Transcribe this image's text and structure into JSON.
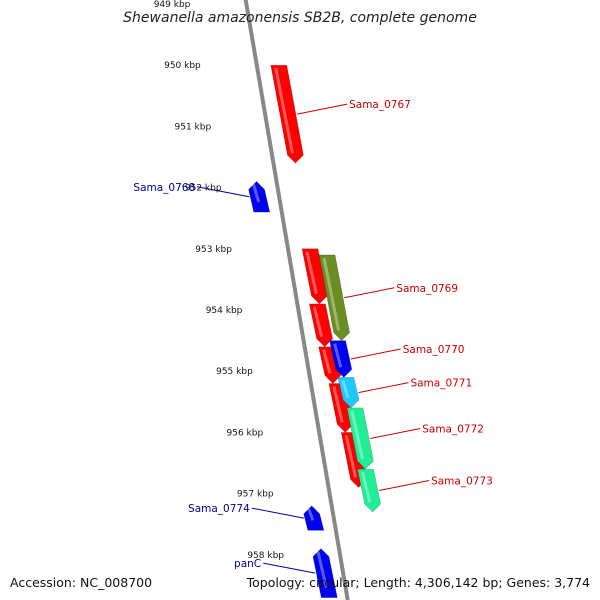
{
  "title": "Shewanella amazonensis SB2B, complete genome",
  "accession": "Accession: NC_008700",
  "topology": "Topology: circular; Length: 4,306,142 bp; Genes: 3,774",
  "colors": {
    "backbone": "#888888",
    "tick": "#1a7a1a",
    "forward_label": "#cc0000",
    "reverse_label": "#000099"
  },
  "ticks": [
    "949 kbp",
    "950 kbp",
    "951 kbp",
    "952 kbp",
    "953 kbp",
    "954 kbp",
    "955 kbp",
    "956 kbp",
    "957 kbp",
    "958 kbp"
  ],
  "genes": [
    {
      "name": "Sama_0767",
      "strand": "+",
      "start_kbp": 950.0,
      "end_kbp": 951.6,
      "color": "#ff0000"
    },
    {
      "name": "Sama_0768",
      "strand": "-",
      "start_kbp": 951.9,
      "end_kbp": 952.4,
      "color": "#0000ee"
    },
    {
      "name": "Sama_0769",
      "strand": "+",
      "start_kbp": 953.1,
      "end_kbp": 954.5,
      "color": "#6b8e23"
    },
    {
      "name": "Sama_0770",
      "strand": "+",
      "start_kbp": 954.5,
      "end_kbp": 955.1,
      "color": "#0000ee"
    },
    {
      "name": "Sama_0771",
      "strand": "+",
      "start_kbp": 955.1,
      "end_kbp": 955.6,
      "color": "#1ec8ff"
    },
    {
      "name": "Sama_0772",
      "strand": "+",
      "start_kbp": 955.6,
      "end_kbp": 956.6,
      "color": "#20ee96"
    },
    {
      "name": "Sama_0773",
      "strand": "+",
      "start_kbp": 956.6,
      "end_kbp": 957.3,
      "color": "#20ee96"
    },
    {
      "name": "Sama_0774",
      "strand": "-",
      "start_kbp": 957.2,
      "end_kbp": 957.6,
      "color": "#0000ee"
    },
    {
      "name": "panC",
      "strand": "-",
      "start_kbp": 957.9,
      "end_kbp": 958.7,
      "color": "#0000ee"
    }
  ]
}
